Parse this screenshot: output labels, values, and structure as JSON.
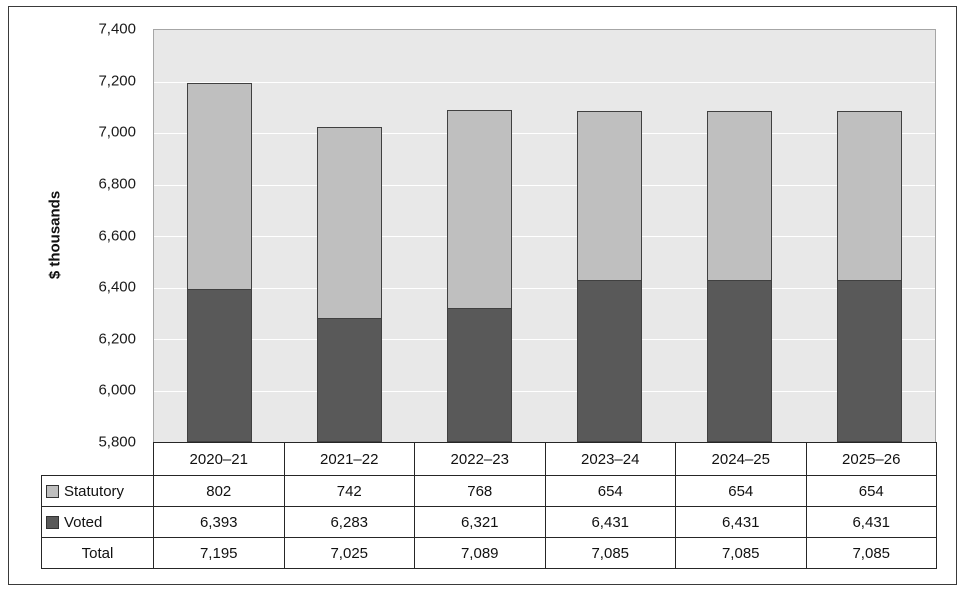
{
  "chart_data": {
    "type": "bar",
    "stacked": true,
    "categories": [
      "2020–21",
      "2021–22",
      "2022–23",
      "2023–24",
      "2024–25",
      "2025–26"
    ],
    "series": [
      {
        "name": "Statutory",
        "values": [
          802,
          742,
          768,
          654,
          654,
          654
        ],
        "color": "#bfbfbf"
      },
      {
        "name": "Voted",
        "values": [
          6393,
          6283,
          6321,
          6431,
          6431,
          6431
        ],
        "color": "#595959"
      }
    ],
    "totals": [
      7195,
      7025,
      7089,
      7085,
      7085,
      7085
    ],
    "ylabel": "$ thousands",
    "ylim": [
      5800,
      7400
    ],
    "y_tick_step": 200,
    "grid": true,
    "legend_position": "table-rows-left",
    "colors": {
      "statutory": "#bfbfbf",
      "voted": "#595959",
      "plot_background": "#e8e8e8",
      "gridline": "#ffffff"
    }
  },
  "table": {
    "rows": [
      {
        "label": "Statutory",
        "swatch": "#bfbfbf",
        "values": [
          "802",
          "742",
          "768",
          "654",
          "654",
          "654"
        ]
      },
      {
        "label": "Voted",
        "swatch": "#595959",
        "values": [
          "6,393",
          "6,283",
          "6,321",
          "6,431",
          "6,431",
          "6,431"
        ]
      },
      {
        "label": "Total",
        "swatch": "",
        "values": [
          "7,195",
          "7,025",
          "7,089",
          "7,085",
          "7,085",
          "7,085"
        ]
      }
    ]
  }
}
